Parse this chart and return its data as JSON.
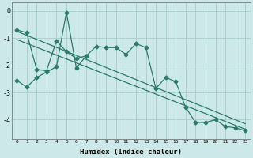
{
  "xlabel": "Humidex (Indice chaleur)",
  "bg_color": "#cce8e8",
  "line_color": "#2a7a6a",
  "grid_color": "#aacccc",
  "xlim": [
    -0.5,
    23.5
  ],
  "ylim": [
    -4.7,
    0.3
  ],
  "yticks": [
    0,
    -1,
    -2,
    -3,
    -4
  ],
  "xticks": [
    0,
    1,
    2,
    3,
    4,
    5,
    6,
    7,
    8,
    9,
    10,
    11,
    12,
    13,
    14,
    15,
    16,
    17,
    18,
    19,
    20,
    21,
    22,
    23
  ],
  "series1_x": [
    0,
    1,
    2,
    3,
    4,
    5,
    6,
    7,
    8,
    9,
    10,
    11,
    12,
    13,
    14,
    15,
    16,
    17,
    18,
    19,
    20,
    21,
    22,
    23
  ],
  "series1_y": [
    -2.55,
    -2.8,
    -2.45,
    -2.25,
    -2.05,
    -0.05,
    -2.1,
    -1.65,
    -1.3,
    -1.35,
    -1.35,
    -1.6,
    -1.2,
    -1.35,
    -2.85,
    -2.45,
    -2.6,
    -3.55,
    -4.1,
    -4.1,
    -4.0,
    -4.25,
    -4.3,
    -4.4
  ],
  "series2_x": [
    0,
    1,
    2,
    3,
    4,
    5,
    6,
    7
  ],
  "series2_y": [
    -0.7,
    -0.8,
    -2.15,
    -2.2,
    -1.1,
    -1.5,
    -1.75,
    -1.65
  ],
  "series3_x": [
    0,
    23
  ],
  "series3_y": [
    -0.75,
    -4.15
  ],
  "series4_x": [
    0,
    23
  ],
  "series4_y": [
    -1.05,
    -4.35
  ]
}
